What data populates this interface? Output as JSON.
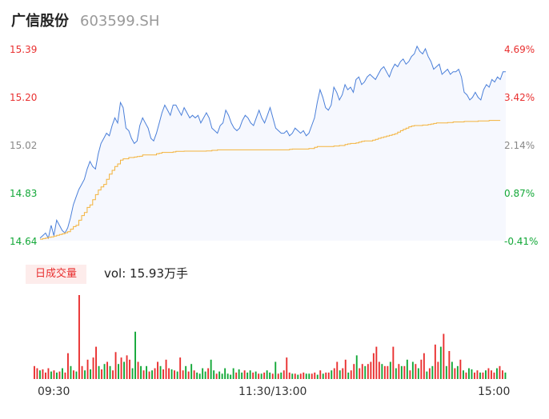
{
  "header": {
    "stock_name": "广信股份",
    "stock_code": "603599.SH"
  },
  "price_axis": {
    "left_labels": [
      "15.39",
      "15.20",
      "15.02",
      "14.83",
      "14.64"
    ],
    "right_labels": [
      "4.69%",
      "3.42%",
      "2.14%",
      "0.87%",
      "-0.41%"
    ],
    "colors": [
      "#e93030",
      "#e93030",
      "#888888",
      "#13a838",
      "#13a838"
    ]
  },
  "volume_panel": {
    "badge": "日成交量",
    "summary": "vol: 15.93万手"
  },
  "time_axis": {
    "labels": [
      "09:30",
      "11:30/13:00",
      "15:00"
    ]
  },
  "colors": {
    "price_line": "#4a7fd9",
    "avg_line": "#f3b23a",
    "up": "#e93030",
    "down": "#13a838",
    "fill": "#f6f8fe"
  },
  "chart_data": {
    "type": "line",
    "ylim": [
      14.64,
      15.39
    ],
    "percent_range": [
      -0.41,
      4.69
    ],
    "price_series": [
      14.65,
      14.66,
      14.67,
      14.65,
      14.7,
      14.66,
      14.72,
      14.7,
      14.68,
      14.67,
      14.69,
      14.73,
      14.78,
      14.81,
      14.84,
      14.86,
      14.88,
      14.92,
      14.95,
      14.93,
      14.92,
      14.98,
      15.02,
      15.04,
      15.06,
      15.05,
      15.09,
      15.12,
      15.1,
      15.18,
      15.16,
      15.08,
      15.07,
      15.04,
      15.02,
      15.03,
      15.09,
      15.12,
      15.1,
      15.08,
      15.04,
      15.03,
      15.06,
      15.1,
      15.14,
      15.17,
      15.15,
      15.13,
      15.17,
      15.17,
      15.15,
      15.13,
      15.16,
      15.14,
      15.12,
      15.13,
      15.12,
      15.13,
      15.1,
      15.12,
      15.14,
      15.12,
      15.08,
      15.07,
      15.06,
      15.09,
      15.1,
      15.15,
      15.13,
      15.1,
      15.08,
      15.07,
      15.08,
      15.11,
      15.13,
      15.12,
      15.1,
      15.09,
      15.12,
      15.15,
      15.12,
      15.1,
      15.13,
      15.16,
      15.12,
      15.08,
      15.07,
      15.06,
      15.06,
      15.07,
      15.05,
      15.06,
      15.08,
      15.07,
      15.06,
      15.07,
      15.05,
      15.06,
      15.09,
      15.12,
      15.18,
      15.23,
      15.2,
      15.16,
      15.15,
      15.17,
      15.24,
      15.22,
      15.19,
      15.21,
      15.25,
      15.23,
      15.24,
      15.22,
      15.27,
      15.28,
      15.25,
      15.26,
      15.28,
      15.29,
      15.28,
      15.27,
      15.29,
      15.31,
      15.32,
      15.3,
      15.28,
      15.31,
      15.33,
      15.32,
      15.34,
      15.35,
      15.33,
      15.34,
      15.36,
      15.37,
      15.4,
      15.38,
      15.37,
      15.39,
      15.36,
      15.34,
      15.31,
      15.32,
      15.33,
      15.29,
      15.3,
      15.31,
      15.29,
      15.3,
      15.3,
      15.31,
      15.28,
      15.22,
      15.21,
      15.19,
      15.2,
      15.22,
      15.2,
      15.19,
      15.23,
      15.25,
      15.24,
      15.27,
      15.26,
      15.28,
      15.27,
      15.3,
      15.3
    ],
    "avg_series": [
      14.646,
      14.648,
      14.65,
      14.653,
      14.655,
      14.658,
      14.661,
      14.664,
      14.667,
      14.671,
      14.675,
      14.685,
      14.695,
      14.7,
      14.72,
      14.738,
      14.75,
      14.77,
      14.78,
      14.8,
      14.82,
      14.838,
      14.85,
      14.86,
      14.88,
      14.9,
      14.915,
      14.93,
      14.94,
      14.955,
      14.96,
      14.96,
      14.965,
      14.965,
      14.967,
      14.969,
      14.97,
      14.975,
      14.975,
      14.975,
      14.975,
      14.975,
      14.98,
      14.982,
      14.985,
      14.985,
      14.985,
      14.985,
      14.987,
      14.989,
      14.989,
      14.989,
      14.99,
      14.99,
      14.99,
      14.99,
      14.99,
      14.99,
      14.99,
      14.99,
      14.991,
      14.991,
      14.993,
      14.993,
      14.995,
      14.995,
      14.995,
      14.995,
      14.995,
      14.995,
      14.995,
      14.995,
      14.995,
      14.995,
      14.995,
      14.995,
      14.995,
      14.995,
      14.995,
      14.995,
      14.995,
      14.995,
      14.995,
      14.995,
      14.995,
      14.995,
      14.995,
      14.995,
      14.995,
      14.995,
      14.997,
      14.998,
      14.998,
      14.998,
      14.998,
      14.998,
      14.998,
      15.0,
      15.0,
      15.005,
      15.008,
      15.008,
      15.008,
      15.008,
      15.008,
      15.008,
      15.01,
      15.01,
      15.012,
      15.012,
      15.016,
      15.018,
      15.02,
      15.02,
      15.022,
      15.025,
      15.028,
      15.03,
      15.03,
      15.03,
      15.033,
      15.036,
      15.04,
      15.043,
      15.046,
      15.049,
      15.052,
      15.055,
      15.058,
      15.064,
      15.07,
      15.075,
      15.08,
      15.085,
      15.088,
      15.09,
      15.09,
      15.09,
      15.092,
      15.092,
      15.094,
      15.096,
      15.098,
      15.1,
      15.1,
      15.1,
      15.1,
      15.102,
      15.102,
      15.104,
      15.104,
      15.104,
      15.104,
      15.106,
      15.106,
      15.106,
      15.106,
      15.106,
      15.108,
      15.108,
      15.108,
      15.108,
      15.11,
      15.11,
      15.11,
      15.11,
      15.11
    ],
    "volume_up": [
      3.2,
      2.8,
      0.6,
      0.6,
      0.4,
      2.4,
      0.5,
      0.5,
      0.5,
      0.5,
      0.8,
      0.6,
      1.8,
      1.2,
      0.6,
      0.6,
      0.6,
      3.0,
      0.8,
      0.6,
      1.0,
      3.2,
      0.6,
      1.6,
      1.4,
      1.4,
      1.2,
      1.4,
      2.6,
      2.4,
      0.6,
      0.6,
      1.6,
      0.8,
      1.4,
      0.6,
      1.0,
      1.2,
      0.4,
      0.7,
      0.5,
      0.8,
      1.0,
      1.8,
      0.5,
      0.5,
      0.5,
      0.5,
      0.5,
      1.8,
      0.6,
      0.4,
      0.3,
      0.3,
      0.3,
      0.3,
      0.3,
      0.3,
      0.3,
      0.3,
      0.3,
      0.3,
      0.3,
      0.3,
      0.3,
      0.3,
      0.3,
      0.3,
      0.3,
      0.3,
      0.3,
      0.3,
      0.3,
      0.3,
      0.3,
      0.3,
      0.3,
      0.3,
      0.3,
      0.3,
      0.3,
      0.3,
      0.3,
      0.3,
      0.3,
      0.3,
      0.3,
      0.3,
      0.3,
      0.3,
      0.3,
      0.3,
      0.3,
      0.3,
      0.3,
      0.3,
      0.3,
      0.3,
      0.3,
      0.3,
      0.3,
      0.3,
      0.3,
      0.3,
      0.3,
      0.3,
      0.3,
      0.3,
      0.3,
      0.3,
      0.3,
      0.3,
      0.3,
      0.3,
      0.3,
      0.3,
      0.3,
      0.3,
      0.3,
      0.3,
      0.3,
      0.3,
      0.3,
      0.3,
      0.3,
      0.3,
      0.3,
      0.3,
      0.3,
      0.3,
      0.3,
      0.3,
      0.3,
      0.3,
      0.3,
      0.3,
      0.3,
      0.3,
      0.3,
      0.3,
      0.3,
      0.3,
      0.3,
      0.3,
      0.3,
      0.3,
      0.3,
      0.3,
      0.3,
      0.3,
      0.3,
      0.3,
      0.3,
      0.3,
      0.3,
      0.3,
      0.3,
      0.3,
      0.3,
      0.3,
      0.3,
      0.3,
      0.3,
      0.3,
      0.3,
      0.3
    ],
    "volume_down": [
      0.5,
      0.6,
      0.6,
      0.5,
      1.0,
      0.6,
      0.6,
      0.6,
      0.5,
      0.5,
      0.7,
      0.6,
      0.6,
      0.4,
      0.5,
      0.4,
      0.4,
      0.5,
      0.5,
      0.4,
      0.4,
      0.6,
      0.4,
      0.5,
      0.5,
      0.6,
      0.5,
      0.6,
      0.5,
      0.5,
      0.4,
      0.4,
      0.5,
      0.5,
      0.4,
      0.6,
      0.4,
      0.4,
      0.4,
      0.4,
      0.5,
      0.4,
      0.4,
      0.4,
      0.4,
      0.4,
      0.4,
      0.4,
      0.4,
      0.4,
      0.4,
      0.4,
      0.4,
      0.4,
      0.4,
      0.4,
      0.4,
      0.4,
      0.4,
      0.4,
      0.4,
      0.4,
      0.4,
      0.4,
      0.4,
      0.4,
      0.4,
      0.4,
      0.4,
      0.4,
      0.4,
      0.4,
      0.4,
      0.4,
      0.4,
      0.4,
      0.4,
      0.4,
      0.4,
      0.4,
      0.4,
      0.4,
      0.4,
      0.4,
      0.4,
      0.4,
      0.4,
      0.4,
      0.4,
      0.4,
      0.4,
      0.4,
      0.4,
      0.4,
      0.4,
      0.4,
      0.4,
      0.4,
      0.4,
      0.4,
      0.4,
      0.4,
      0.4,
      0.4,
      0.4,
      0.4,
      0.4,
      0.4,
      0.4,
      0.4,
      0.4,
      0.4,
      0.4,
      0.4,
      0.4,
      0.4,
      0.4,
      0.4,
      0.4,
      0.4,
      0.4,
      0.4,
      0.4,
      0.4,
      0.4,
      0.4,
      0.4,
      0.4,
      0.4,
      0.4,
      0.4,
      0.4,
      0.4,
      0.4,
      0.4,
      0.4,
      0.4,
      0.4,
      0.4,
      0.4,
      0.4,
      0.4,
      0.4,
      0.4,
      0.4,
      0.4,
      0.4,
      0.4,
      0.4,
      0.4,
      0.4,
      0.4,
      0.4,
      0.4,
      0.4,
      0.4,
      0.4,
      0.4,
      0.4,
      0.4,
      0.4,
      0.4,
      0.4,
      0.4,
      0.4,
      0.4,
      0.4,
      0.4,
      0.4,
      0.4,
      0.4,
      0.4
    ],
    "volume_series": [
      1.2,
      1.0,
      0.8,
      0.9,
      0.6,
      1.0,
      0.7,
      0.8,
      0.6,
      0.7,
      1.0,
      0.6,
      2.4,
      1.2,
      0.8,
      0.7,
      7.8,
      1.2,
      0.8,
      1.8,
      0.9,
      2.0,
      3.0,
      1.2,
      0.9,
      1.4,
      1.6,
      1.2,
      0.8,
      2.5,
      1.4,
      2.0,
      1.6,
      2.2,
      1.8,
      1.0,
      4.4,
      1.6,
      1.2,
      0.8,
      1.2,
      0.7,
      0.8,
      1.0,
      1.6,
      1.2,
      0.9,
      1.8,
      1.0,
      0.9,
      0.8,
      0.7,
      2.0,
      0.8,
      1.2,
      0.7,
      1.4,
      0.8,
      0.6,
      0.5,
      1.0,
      0.7,
      1.0,
      1.8,
      0.8,
      0.5,
      0.7,
      0.5,
      1.0,
      0.5,
      0.4,
      1.0,
      0.6,
      0.9,
      0.6,
      0.8,
      0.6,
      0.8,
      0.6,
      0.7,
      0.5,
      0.5,
      0.6,
      0.8,
      0.6,
      0.5,
      1.6,
      0.5,
      0.6,
      0.8,
      2.0,
      0.6,
      0.5,
      0.5,
      0.4,
      0.5,
      0.6,
      0.5,
      0.5,
      0.5,
      0.6,
      0.4,
      0.8,
      0.5,
      0.6,
      0.6,
      0.8,
      1.0,
      1.6,
      0.8,
      1.0,
      1.8,
      0.6,
      0.8,
      1.4,
      2.2,
      1.0,
      1.4,
      1.2,
      1.4,
      1.6,
      2.4,
      3.0,
      1.6,
      1.4,
      1.2,
      1.2,
      1.6,
      3.0,
      1.0,
      1.4,
      1.2,
      1.2,
      1.8,
      0.8,
      1.6,
      1.4,
      1.0,
      1.8,
      2.4,
      0.7,
      1.0,
      1.2,
      3.2,
      1.6,
      3.0,
      4.2,
      1.2,
      2.6,
      1.6,
      1.0,
      1.2,
      1.8,
      0.8,
      0.6,
      1.0,
      0.9,
      0.6,
      0.8,
      0.6,
      0.6,
      0.8,
      1.0,
      0.8,
      0.6,
      1.0,
      1.2,
      0.8,
      0.6
    ],
    "volume_colors": [
      "up",
      "up",
      "down",
      "up",
      "up",
      "up",
      "down",
      "up",
      "down",
      "up",
      "down",
      "up",
      "up",
      "down",
      "up",
      "down",
      "up",
      "up",
      "down",
      "up",
      "down",
      "up",
      "up",
      "down",
      "up",
      "down",
      "up",
      "down",
      "up",
      "up",
      "down",
      "up",
      "down",
      "up",
      "up",
      "down",
      "down",
      "up",
      "down",
      "up",
      "down",
      "up",
      "down",
      "up",
      "up",
      "down",
      "up",
      "up",
      "up",
      "down",
      "up",
      "down",
      "up",
      "up",
      "down",
      "up",
      "down",
      "up",
      "down",
      "down",
      "down",
      "down",
      "up",
      "down",
      "down",
      "up",
      "down",
      "down",
      "down",
      "down",
      "down",
      "down",
      "up",
      "down",
      "down",
      "up",
      "down",
      "down",
      "up",
      "down",
      "up",
      "down",
      "up",
      "down",
      "down",
      "up",
      "down",
      "up",
      "down",
      "up",
      "up",
      "up",
      "down",
      "up",
      "down",
      "up",
      "up",
      "down",
      "down",
      "up",
      "up",
      "down",
      "up",
      "down",
      "up",
      "up",
      "down",
      "up",
      "up",
      "down",
      "up",
      "up",
      "down",
      "up",
      "up",
      "down",
      "up",
      "up",
      "down",
      "up",
      "up",
      "up",
      "up",
      "up",
      "down",
      "up",
      "up",
      "down",
      "up",
      "down",
      "up",
      "down",
      "up",
      "down",
      "up",
      "down",
      "up",
      "down",
      "up",
      "up",
      "down",
      "up",
      "down",
      "up",
      "up",
      "down",
      "up",
      "down",
      "up",
      "down",
      "up",
      "down",
      "up",
      "down",
      "up",
      "down",
      "down",
      "up",
      "up",
      "down",
      "up",
      "down",
      "up",
      "up",
      "up",
      "down",
      "up",
      "up",
      "down"
    ],
    "last_volume_color": "down"
  }
}
